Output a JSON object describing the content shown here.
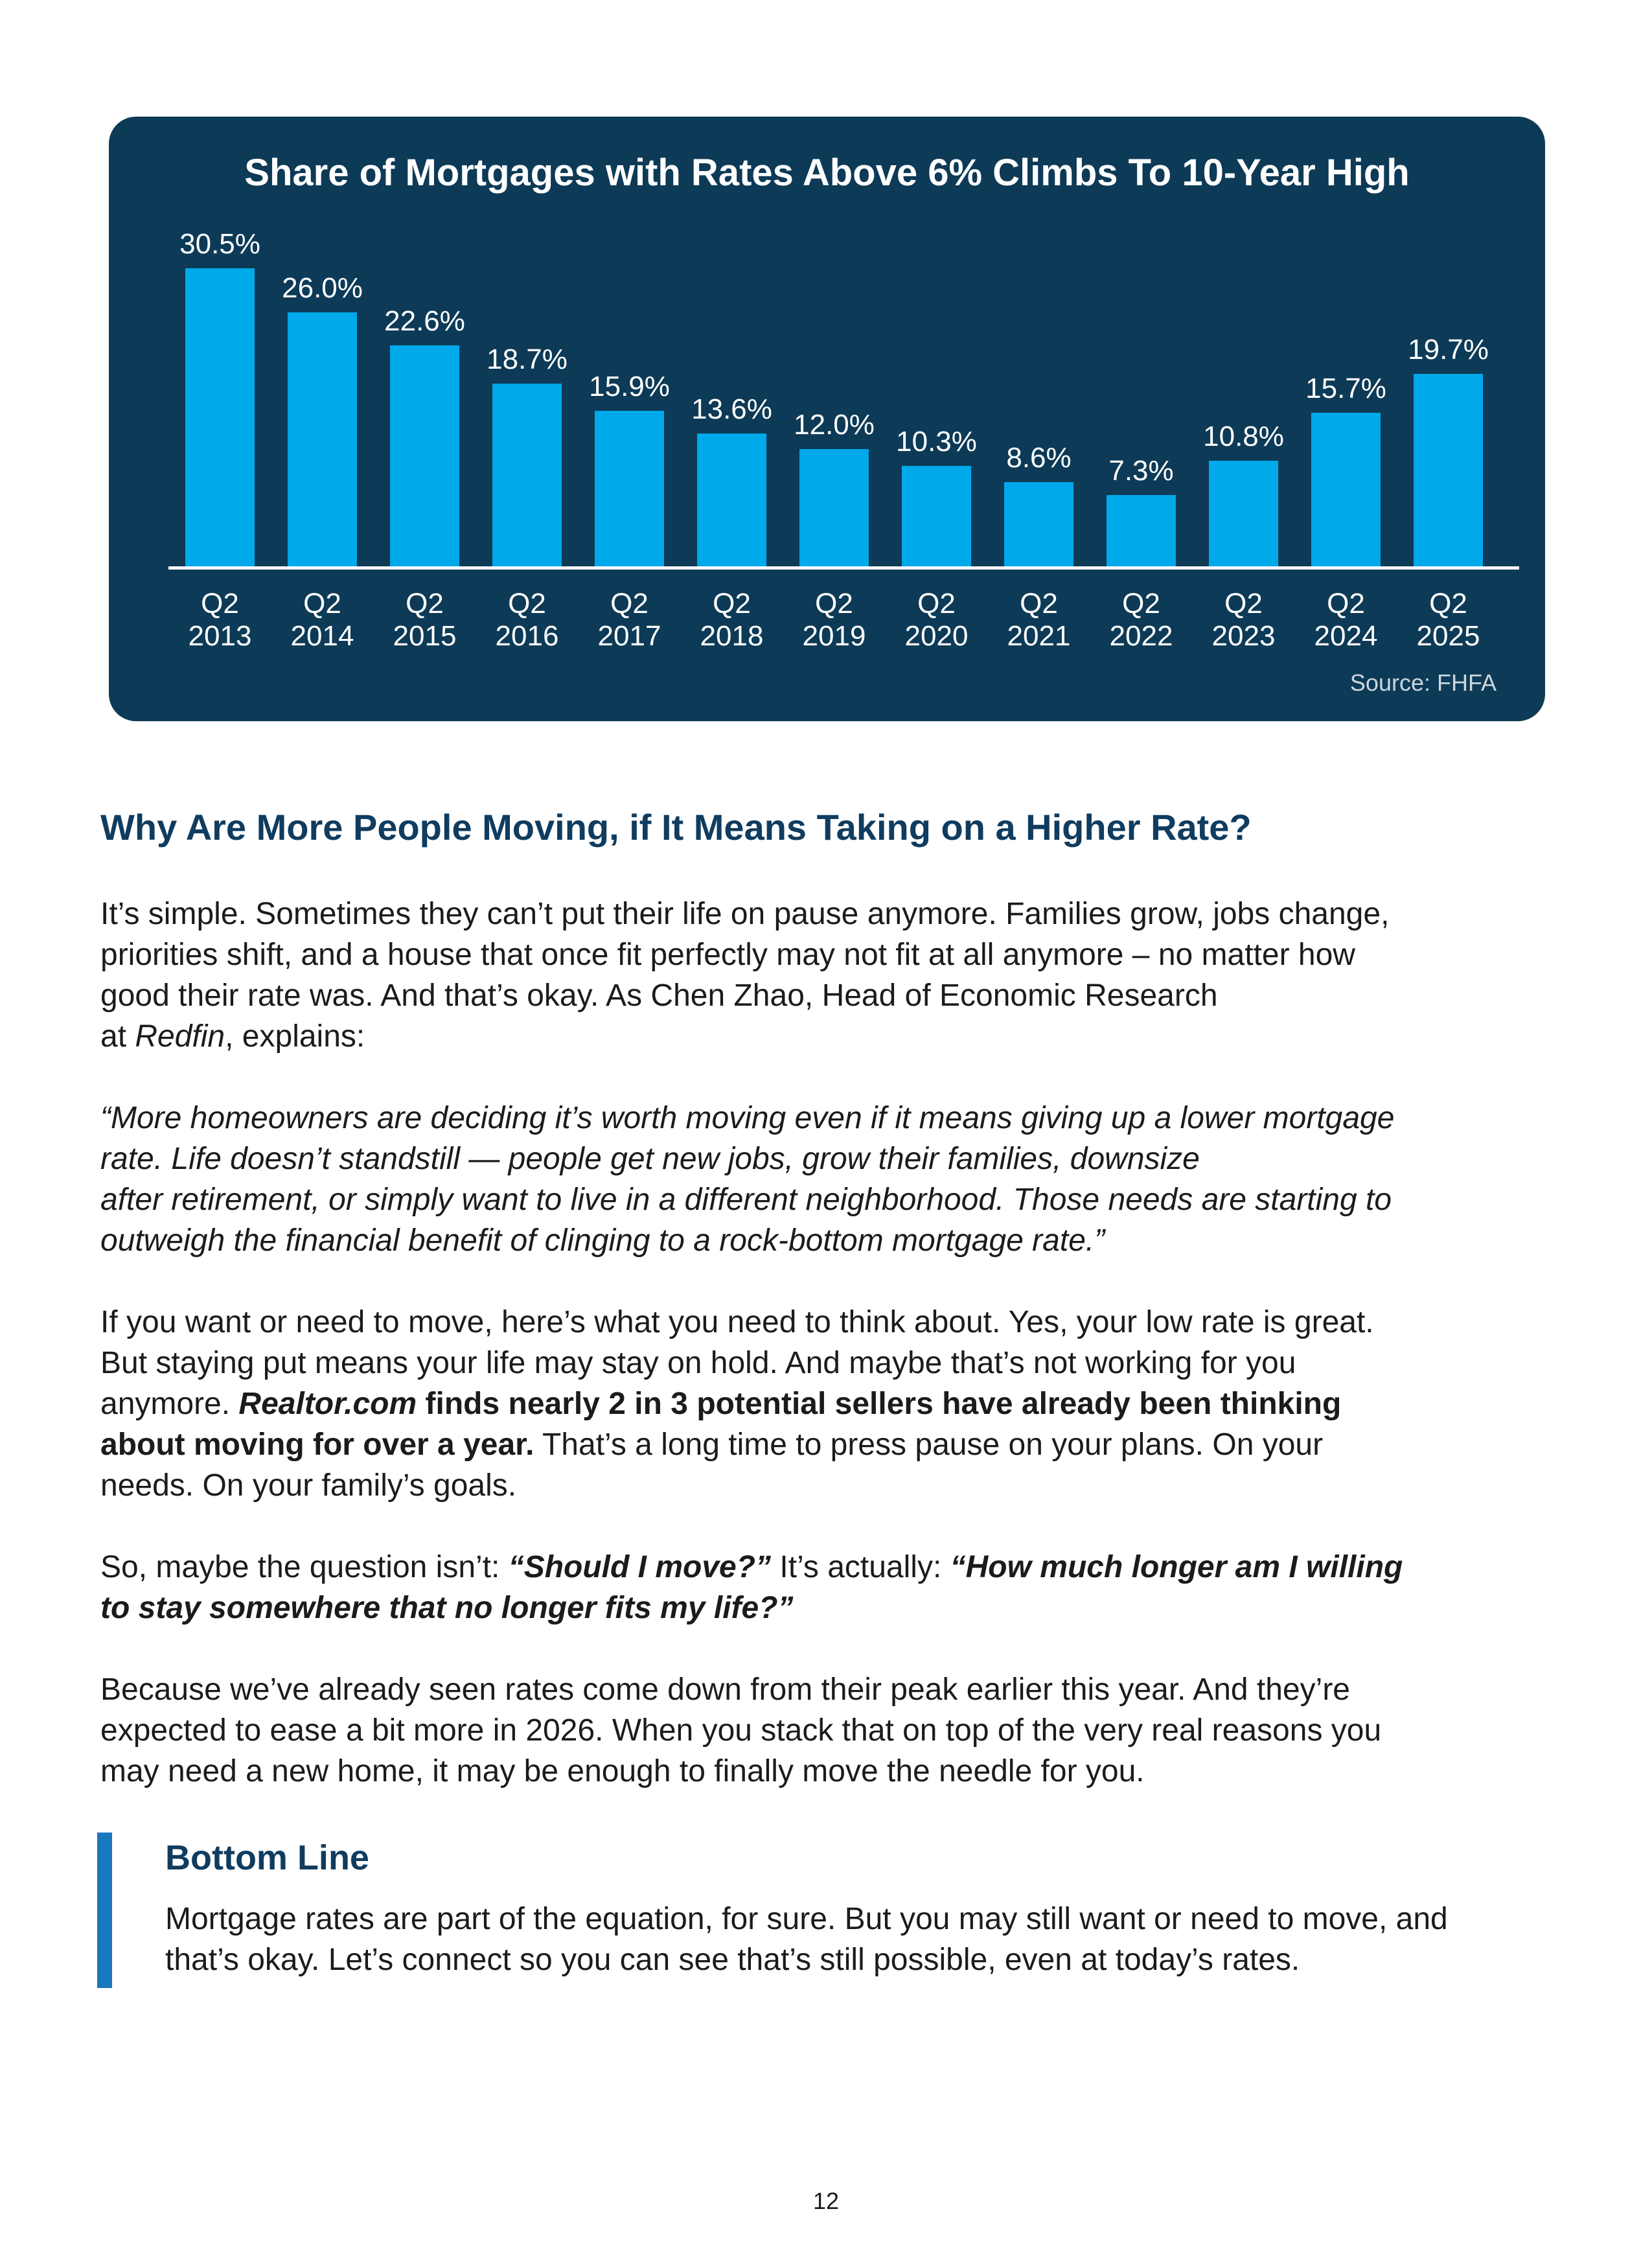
{
  "page": {
    "number": "12"
  },
  "chart": {
    "title": "Share of Mortgages with Rates Above 6% Climbs To 10-Year High",
    "source": "Source: FHFA",
    "colors": {
      "card_bg": "#0d3a56",
      "bar": "#00a9ea",
      "title_text": "#ffffff",
      "label_text": "#ffffff",
      "axis_text": "#ffffff",
      "baseline": "#ffffff",
      "source_text": "#ccd6dd"
    }
  },
  "chart_data": {
    "type": "bar",
    "title": "Share of Mortgages with Rates Above 6% Climbs To 10-Year High",
    "categories": [
      "Q2 2013",
      "Q2 2014",
      "Q2 2015",
      "Q2 2016",
      "Q2 2017",
      "Q2 2018",
      "Q2 2019",
      "Q2 2020",
      "Q2 2021",
      "Q2 2022",
      "Q2 2023",
      "Q2 2024",
      "Q2 2025"
    ],
    "values": [
      30.5,
      26.0,
      22.6,
      18.7,
      15.9,
      13.6,
      12.0,
      10.3,
      8.6,
      7.3,
      10.8,
      15.7,
      19.7
    ],
    "labels": [
      "30.5%",
      "26.0%",
      "22.6%",
      "18.7%",
      "15.9%",
      "13.6%",
      "12.0%",
      "10.3%",
      "8.6%",
      "7.3%",
      "10.8%",
      "15.7%",
      "19.7%"
    ],
    "xlabel": "",
    "ylabel": "",
    "ylim": [
      0,
      33
    ],
    "grid": false,
    "legend": "none",
    "bar_color": "#00a9ea",
    "source": "Source: FHFA"
  },
  "article": {
    "heading": "Why Are More People Moving, if It Means Taking on a Higher Rate?",
    "heading_color": "#0f3c5f",
    "paragraphs": [
      {
        "runs": [
          {
            "t": "It’s simple. Sometimes they can’t put their life on pause anymore. Families grow, jobs change,\npriorities shift, and a house that once fit perfectly may not fit at all anymore – no matter how\ngood their rate was. And that’s okay. As Chen Zhao, Head of Economic Research\nat "
          },
          {
            "t": "Redfin",
            "i": true
          },
          {
            "t": ", explains:"
          }
        ]
      },
      {
        "runs": [
          {
            "t": "“More homeowners are deciding it’s worth moving even if it means giving up a lower mortgage\nrate. Life doesn’t standstill — people get new jobs, grow their families, downsize\nafter retirement, or simply want to live in a different neighborhood. Those needs are starting to\noutweigh the financial benefit of clinging to a rock-bottom mortgage rate.”",
            "i": true
          }
        ]
      },
      {
        "runs": [
          {
            "t": "If you want or need to move, here’s what you need to think about. Yes, your low rate is great.\nBut staying put means your life may stay on hold. And maybe that’s not working for you\nanymore. "
          },
          {
            "t": "Realtor.com",
            "b": true,
            "i": true
          },
          {
            "t": " finds nearly 2 in 3 potential sellers have already been thinking\nabout moving for over a year.",
            "b": true
          },
          {
            "t": " That’s a long time to press pause on your plans. On your\nneeds. On your family’s goals."
          }
        ]
      },
      {
        "runs": [
          {
            "t": "So, maybe the question isn’t: "
          },
          {
            "t": "“Should I move?”",
            "b": true,
            "i": true
          },
          {
            "t": " It’s actually: "
          },
          {
            "t": "“How much longer am I willing\nto stay somewhere that no longer fits my life?”",
            "b": true,
            "i": true
          }
        ]
      },
      {
        "runs": [
          {
            "t": "Because we’ve already seen rates come down from their peak earlier this year. And they’re\nexpected to ease a bit more in 2026. When you stack that on top of the very real reasons you\nmay need a new home, it may be enough to finally move the needle for you."
          }
        ]
      }
    ],
    "bottom_line": {
      "heading": "Bottom Line",
      "accent_color": "#1a78bd",
      "runs": [
        {
          "t": "Mortgage rates are part of the equation, for sure. But you may still want or need to move, and\nthat’s okay. Let’s connect so you can see that’s still possible, even at today’s rates."
        }
      ]
    }
  }
}
